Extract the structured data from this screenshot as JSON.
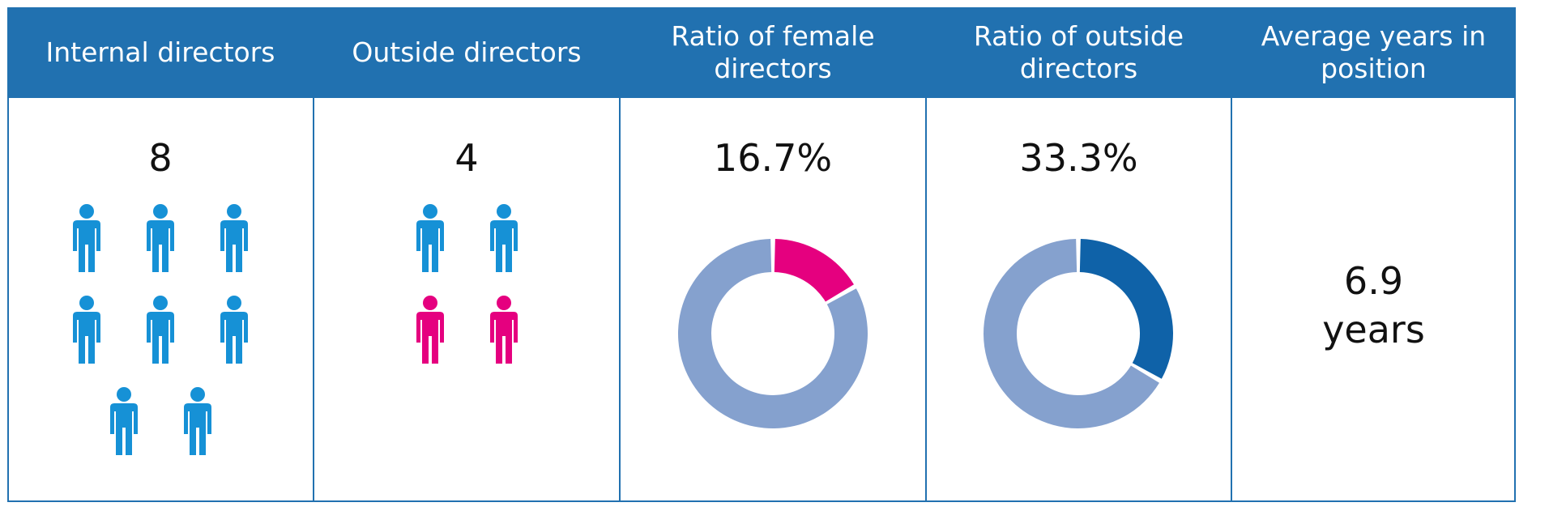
{
  "colors": {
    "header_bg": "#2171b0",
    "male_icon": "#1691d6",
    "female_icon": "#e5007f",
    "donut_track": "#85a1ce",
    "female_segment": "#e5007f",
    "outside_segment": "#0f62a8"
  },
  "columns": [
    {
      "title": "Internal directors",
      "value": "8"
    },
    {
      "title": "Outside directors",
      "value": "4"
    },
    {
      "title": "Ratio of female directors",
      "value": "16.7%"
    },
    {
      "title": "Ratio of outside directors",
      "value": "33.3%"
    },
    {
      "title": "Average years in position",
      "value_number": "6.9",
      "value_unit": "years"
    }
  ],
  "chart_data": [
    {
      "type": "pictogram",
      "icons": [
        "male",
        "male",
        "male",
        "male",
        "male",
        "male",
        "male",
        "male"
      ]
    },
    {
      "type": "pictogram",
      "icons": [
        "male",
        "male",
        "female",
        "female"
      ]
    },
    {
      "type": "pie",
      "donut": true,
      "values": [
        16.7,
        83.3
      ],
      "colors": [
        "#e5007f",
        "#85a1ce"
      ]
    },
    {
      "type": "pie",
      "donut": true,
      "values": [
        33.3,
        66.7
      ],
      "colors": [
        "#0f62a8",
        "#85a1ce"
      ]
    }
  ]
}
